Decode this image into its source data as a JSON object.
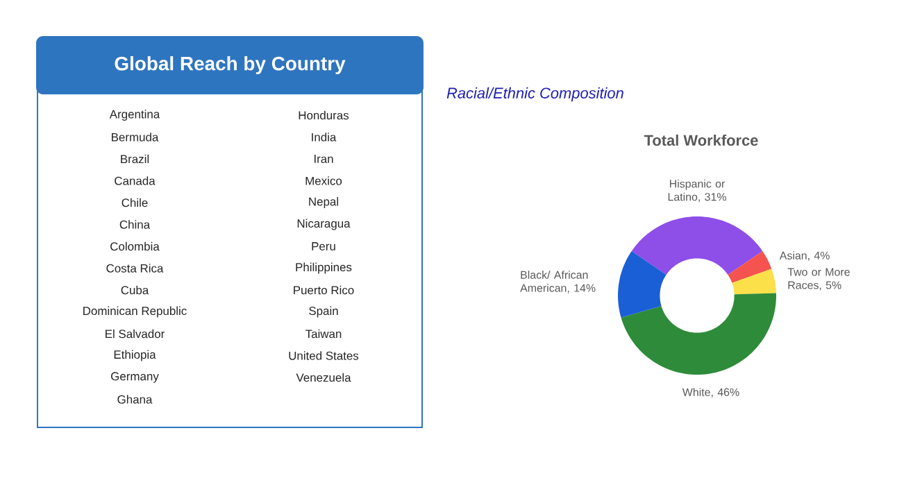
{
  "chart_data": [
    {
      "type": "other",
      "title": "Global Reach by Country",
      "color": "#2e75c0",
      "annotations": [
        "Argentina",
        "Bermuda",
        "Brazil",
        "Canada",
        "Chile",
        "China",
        "Colombia",
        "Costa Rica",
        "Cuba",
        "Dominican Republic",
        "El Salvador",
        "Ethiopia",
        "Germany",
        "Ghana",
        "Honduras",
        "India",
        "Iran",
        "Mexico",
        "Nepal",
        "Nicaragua",
        "Peru",
        "Philippines",
        "Puerto Rico",
        "Spain",
        "Taiwan",
        "United States",
        "Venezuela"
      ]
    },
    {
      "type": "donut",
      "title": "Racial/Ethnic Composition",
      "subtitle": "Total Workforce",
      "categories": [
        "Hispanic or Latino, 31%",
        "Asian, 4%",
        "Two or More Races, 5%",
        "White, 46%",
        "Black/ African American, 14%"
      ],
      "values": [
        31,
        4,
        5,
        46,
        14
      ],
      "colors": [
        "#8e4ee8",
        "#f5534f",
        "#fbe04a",
        "#2e8b3a",
        "#1a5fd6"
      ]
    }
  ]
}
